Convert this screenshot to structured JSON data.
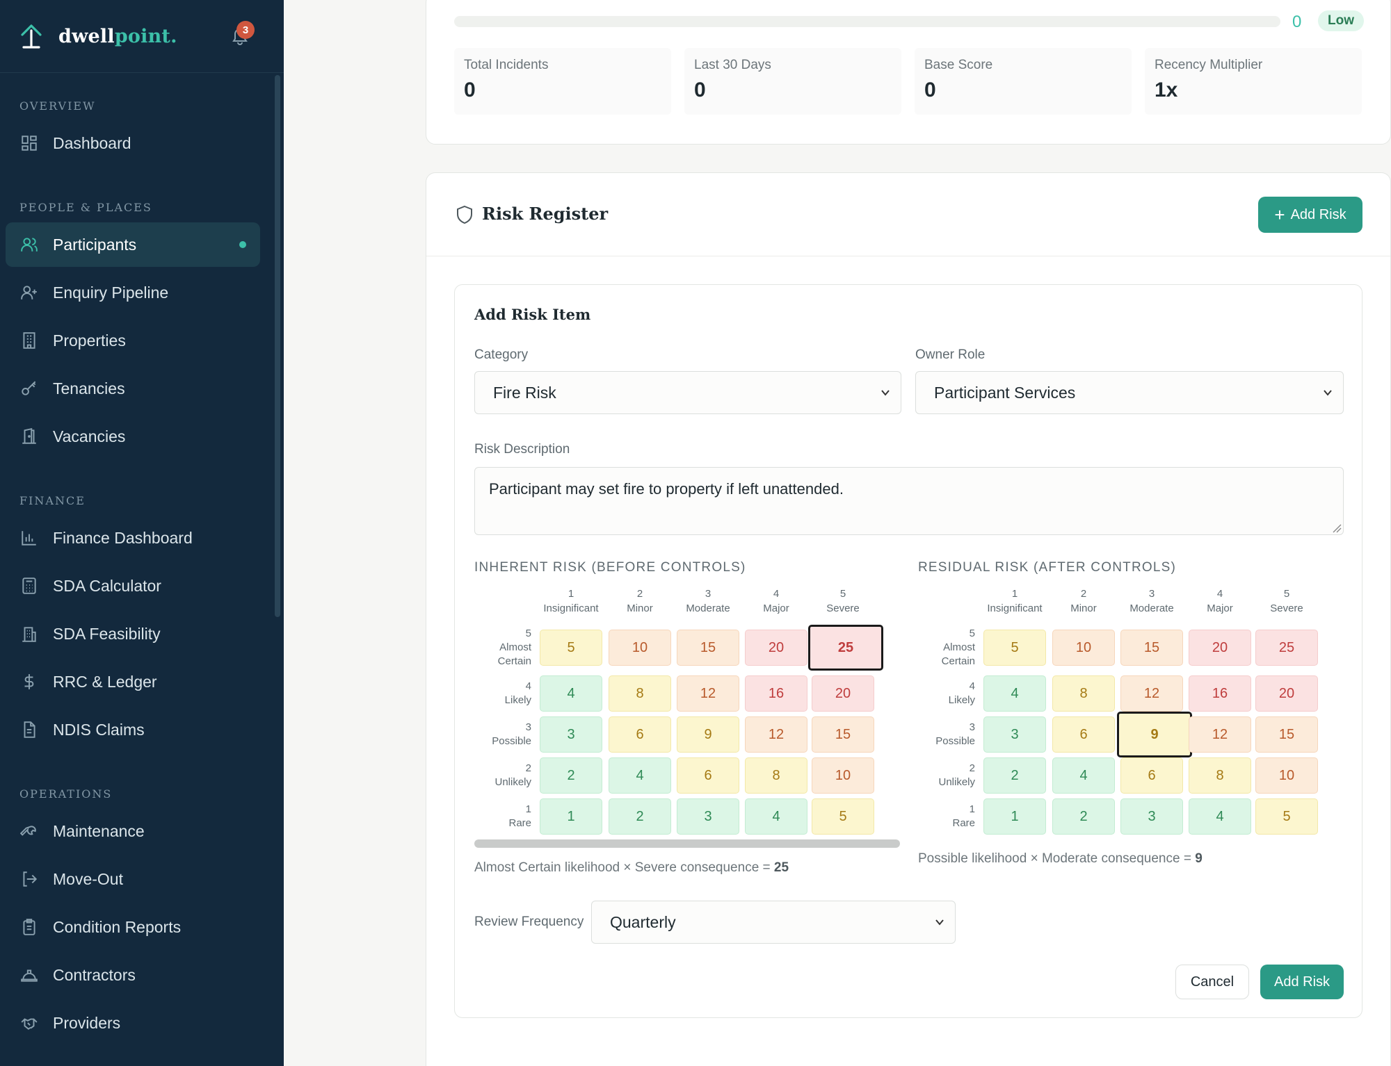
{
  "brand": {
    "name_part1": "dwell",
    "name_part2": "point",
    "name_dot": ".",
    "notification_count": "3"
  },
  "sidebar": {
    "sections": {
      "overview": "OVERVIEW",
      "people": "PEOPLE & PLACES",
      "finance": "FINANCE",
      "operations": "OPERATIONS"
    },
    "items": {
      "dashboard": "Dashboard",
      "participants": "Participants",
      "enquiry": "Enquiry Pipeline",
      "properties": "Properties",
      "tenancies": "Tenancies",
      "vacancies": "Vacancies",
      "finance_dashboard": "Finance Dashboard",
      "sda_calculator": "SDA Calculator",
      "sda_feasibility": "SDA Feasibility",
      "rrc": "RRC & Ledger",
      "ndis": "NDIS Claims",
      "maintenance": "Maintenance",
      "move_out": "Move-Out",
      "condition": "Condition Reports",
      "contractors": "Contractors",
      "providers": "Providers"
    }
  },
  "score_card": {
    "progress_value": "0",
    "level": "Low",
    "progress_fraction": 0,
    "stats": [
      {
        "label": "Total Incidents",
        "value": "0"
      },
      {
        "label": "Last 30 Days",
        "value": "0"
      },
      {
        "label": "Base Score",
        "value": "0"
      },
      {
        "label": "Recency Multiplier",
        "value": "1x"
      }
    ]
  },
  "risk_register": {
    "title": "Risk Register",
    "add_button": "Add Risk",
    "form": {
      "title": "Add Risk Item",
      "category_label": "Category",
      "category_value": "Fire Risk",
      "owner_label": "Owner Role",
      "owner_value": "Participant Services",
      "description_label": "Risk Description",
      "description_value": "Participant may set fire to property if left unattended.",
      "review_label": "Review Frequency",
      "review_value": "Quarterly",
      "cancel": "Cancel",
      "submit": "Add Risk"
    },
    "matrix": {
      "consequences": [
        {
          "num": "1",
          "name": "Insignificant"
        },
        {
          "num": "2",
          "name": "Minor"
        },
        {
          "num": "3",
          "name": "Moderate"
        },
        {
          "num": "4",
          "name": "Major"
        },
        {
          "num": "5",
          "name": "Severe"
        }
      ],
      "likelihoods": [
        {
          "num": "5",
          "name": "Almost Certain"
        },
        {
          "num": "4",
          "name": "Likely"
        },
        {
          "num": "3",
          "name": "Possible"
        },
        {
          "num": "2",
          "name": "Unlikely"
        },
        {
          "num": "1",
          "name": "Rare"
        }
      ],
      "values": [
        [
          5,
          10,
          15,
          20,
          25
        ],
        [
          4,
          8,
          12,
          16,
          20
        ],
        [
          3,
          6,
          9,
          12,
          15
        ],
        [
          2,
          4,
          6,
          8,
          10
        ],
        [
          1,
          2,
          3,
          4,
          5
        ]
      ],
      "levels": [
        [
          "y",
          "o",
          "o",
          "r",
          "r"
        ],
        [
          "g",
          "y",
          "o",
          "r",
          "r"
        ],
        [
          "g",
          "y",
          "y",
          "o",
          "o"
        ],
        [
          "g",
          "g",
          "y",
          "y",
          "o"
        ],
        [
          "g",
          "g",
          "g",
          "g",
          "y"
        ]
      ],
      "inherent": {
        "title": "INHERENT RISK (BEFORE CONTROLS)",
        "selected_likelihood": 5,
        "selected_consequence": 5,
        "note_text": "Almost Certain likelihood × Severe consequence = ",
        "note_value": "25"
      },
      "residual": {
        "title": "RESIDUAL RISK (AFTER CONTROLS)",
        "selected_likelihood": 3,
        "selected_consequence": 3,
        "note_text": "Possible likelihood × Moderate consequence = ",
        "note_value": "9"
      }
    }
  },
  "colors": {
    "accent": "#2b9a86",
    "sidebar_bg": "#13293d",
    "badge": "#d0573f"
  }
}
